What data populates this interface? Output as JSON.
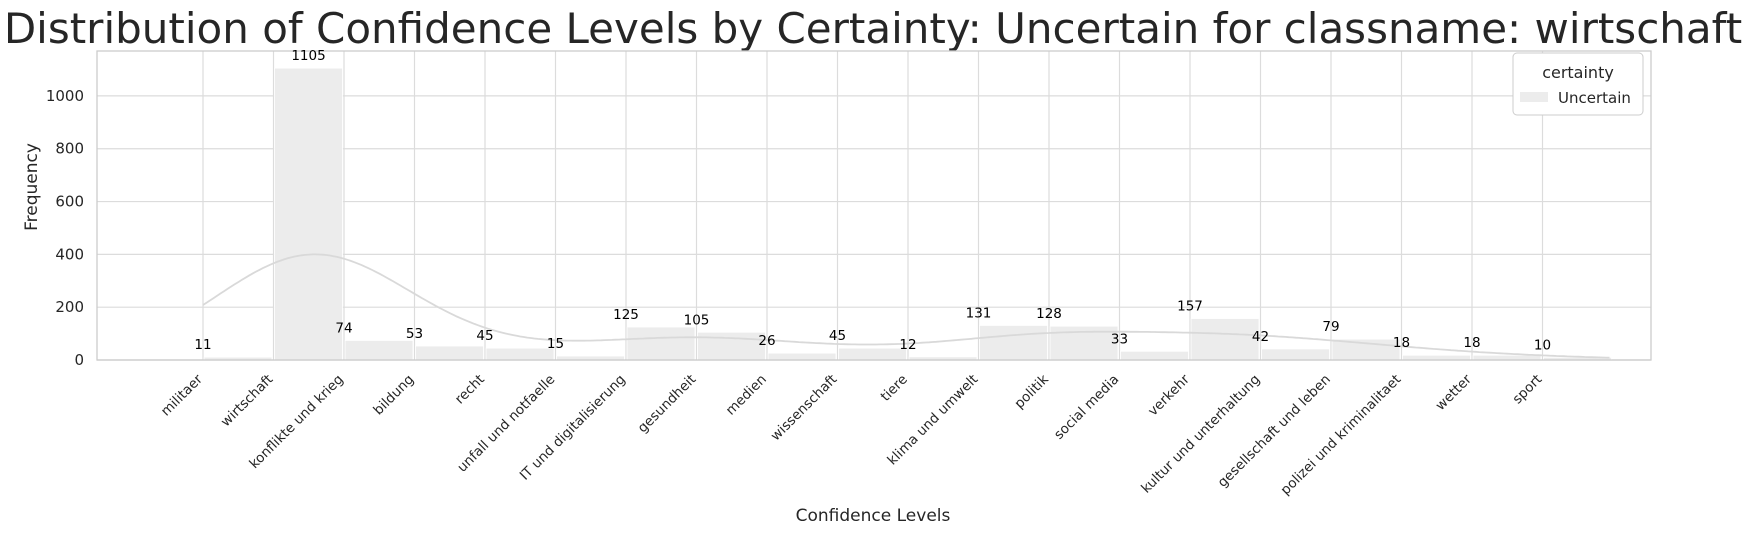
{
  "chart_data": {
    "type": "bar",
    "title": "Distribution of Confidence Levels by Certainty: Uncertain for classname: wirtschaft",
    "xlabel": "Confidence Levels",
    "ylabel": "Frequency",
    "categories": [
      "militaer",
      "wirtschaft",
      "konflikte und krieg",
      "bildung",
      "recht",
      "unfall und notfaelle",
      "IT und digitalisierung",
      "gesundheit",
      "medien",
      "wissenschaft",
      "tiere",
      "klima und umwelt",
      "politik",
      "social media",
      "verkehr",
      "kultur und unterhaltung",
      "gesellschaft und leben",
      "polizei und kriminalitaet",
      "wetter",
      "sport"
    ],
    "series": [
      {
        "name": "Uncertain",
        "values": [
          11,
          1105,
          74,
          53,
          45,
          15,
          125,
          105,
          26,
          45,
          12,
          131,
          128,
          33,
          157,
          42,
          79,
          18,
          18,
          10
        ]
      }
    ],
    "data_labels": [
      "11",
      "1105",
      "74",
      "53",
      "45",
      "15",
      "125",
      "105",
      "26",
      "45",
      "12",
      "131",
      "128",
      "33",
      "157",
      "42",
      "79",
      "18",
      "18",
      "10"
    ],
    "ylim": [
      0,
      1170
    ],
    "yticks": [
      0,
      200,
      400,
      600,
      800,
      1000
    ],
    "ytick_labels": [
      "0",
      "200",
      "400",
      "600",
      "800",
      "1000"
    ],
    "kde_curve": true,
    "grid": true,
    "legend": {
      "title": "certainty",
      "position": "top-right",
      "entries": [
        "Uncertain"
      ]
    },
    "colors": {
      "bar": "#ececec",
      "kde": "#d9d9d9",
      "grid": "#dcdcdc",
      "frame": "#cccccc",
      "text": "#262626"
    }
  }
}
